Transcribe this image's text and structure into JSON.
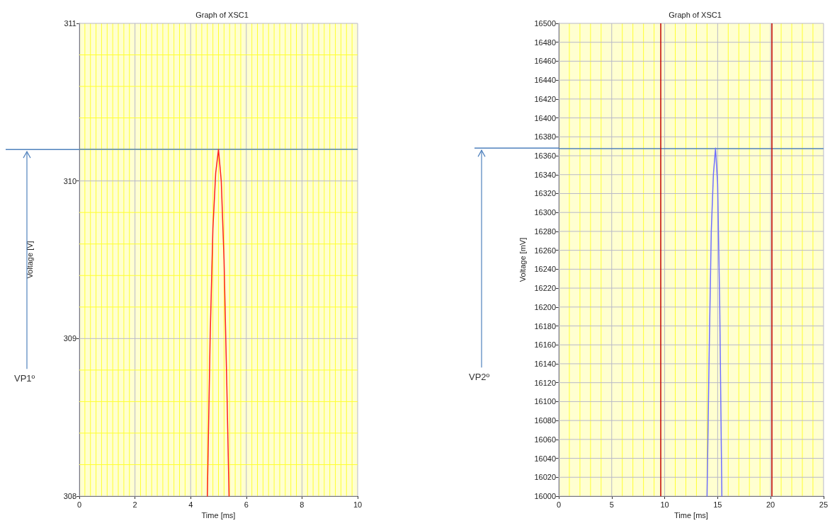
{
  "chart_data": [
    {
      "type": "line",
      "title": "Graph of XSC1",
      "xlabel": "Time [ms]",
      "ylabel": "Voltage [V]",
      "x": [
        4.6,
        4.7,
        4.8,
        4.9,
        5.0,
        5.1,
        5.2,
        5.3,
        5.38
      ],
      "series": [
        {
          "color": "#ff2020",
          "values": [
            308,
            309,
            309.7,
            310.05,
            310.2,
            310,
            309.5,
            308.7,
            308
          ]
        }
      ],
      "xlim": [
        0,
        10
      ],
      "ylim": [
        308,
        311
      ],
      "xticks": [
        0,
        {
          "value": 0.2,
          "label": null
        },
        {
          "value": 0.4,
          "label": null
        },
        {
          "value": 0.6,
          "label": null
        },
        {
          "value": 0.8,
          "label": null
        },
        {
          "value": 1,
          "label": null
        },
        {
          "value": 1.2,
          "label": null
        },
        {
          "value": 1.4,
          "label": null
        },
        {
          "value": 1.6,
          "label": null
        },
        {
          "value": 1.8,
          "label": null
        },
        2,
        {
          "value": 2.2,
          "label": null
        },
        {
          "value": 2.4,
          "label": null
        },
        {
          "value": 2.6,
          "label": null
        },
        {
          "value": 2.8,
          "label": null
        },
        {
          "value": 3,
          "label": null
        },
        {
          "value": 3.2,
          "label": null
        },
        {
          "value": 3.4,
          "label": null
        },
        {
          "value": 3.6,
          "label": null
        },
        {
          "value": 3.8,
          "label": null
        },
        4,
        {
          "value": 4.2,
          "label": null
        },
        {
          "value": 4.4,
          "label": null
        },
        {
          "value": 4.6,
          "label": null
        },
        {
          "value": 4.8,
          "label": null
        },
        {
          "value": 5,
          "label": null
        },
        {
          "value": 5.2,
          "label": null
        },
        {
          "value": 5.4,
          "label": null
        },
        {
          "value": 5.6,
          "label": null
        },
        {
          "value": 5.8,
          "label": null
        },
        6,
        {
          "value": 6.2,
          "label": null
        },
        {
          "value": 6.4,
          "label": null
        },
        {
          "value": 6.6,
          "label": null
        },
        {
          "value": 6.8,
          "label": null
        },
        {
          "value": 7,
          "label": null
        },
        {
          "value": 7.2,
          "label": null
        },
        {
          "value": 7.4,
          "label": null
        },
        {
          "value": 7.6,
          "label": null
        },
        {
          "value": 7.8,
          "label": null
        },
        8,
        {
          "value": 8.2,
          "label": null
        },
        {
          "value": 8.4,
          "label": null
        },
        {
          "value": 8.6,
          "label": null
        },
        {
          "value": 8.8,
          "label": null
        },
        {
          "value": 9,
          "label": null
        },
        {
          "value": 9.2,
          "label": null
        },
        {
          "value": 9.4,
          "label": null
        },
        {
          "value": 9.6,
          "label": null
        },
        {
          "value": 9.8,
          "label": null
        },
        10
      ],
      "yticks": [
        308,
        {
          "value": 308.2,
          "label": null
        },
        {
          "value": 308.4,
          "label": null
        },
        {
          "value": 308.6,
          "label": null
        },
        {
          "value": 308.8,
          "label": null
        },
        309,
        {
          "value": 309.2,
          "label": null
        },
        {
          "value": 309.4,
          "label": null
        },
        {
          "value": 309.6,
          "label": null
        },
        {
          "value": 309.8,
          "label": null
        },
        310,
        {
          "value": 310.2,
          "label": null
        },
        {
          "value": 310.4,
          "label": null
        },
        {
          "value": 310.6,
          "label": null
        },
        {
          "value": 310.8,
          "label": null
        },
        311
      ],
      "grid": true,
      "marker": "none",
      "ref_lines": [
        {
          "axis": "y",
          "value": 310.2,
          "color": "#4f81bd"
        }
      ],
      "annotations": [
        "VP1º"
      ]
    },
    {
      "type": "line",
      "title": "Graph of XSC1",
      "xlabel": "Time [ms]",
      "ylabel": "Voltage [mV]",
      "x": [
        14.0,
        14.2,
        14.4,
        14.6,
        14.8,
        15.0,
        15.2,
        15.4
      ],
      "series": [
        {
          "color": "#6f6fff",
          "values": [
            16000,
            16150,
            16280,
            16340,
            16368,
            16330,
            16200,
            16000
          ]
        }
      ],
      "xlim": [
        0,
        25
      ],
      "ylim": [
        16000,
        16500
      ],
      "xticks": [
        0,
        {
          "value": 1,
          "label": null
        },
        {
          "value": 2,
          "label": null
        },
        {
          "value": 3,
          "label": null
        },
        {
          "value": 4,
          "label": null
        },
        5,
        {
          "value": 6,
          "label": null
        },
        {
          "value": 7,
          "label": null
        },
        {
          "value": 8,
          "label": null
        },
        {
          "value": 9,
          "label": null
        },
        10,
        {
          "value": 11,
          "label": null
        },
        {
          "value": 12,
          "label": null
        },
        {
          "value": 13,
          "label": null
        },
        {
          "value": 14,
          "label": null
        },
        15,
        {
          "value": 16,
          "label": null
        },
        {
          "value": 17,
          "label": null
        },
        {
          "value": 18,
          "label": null
        },
        {
          "value": 19,
          "label": null
        },
        20,
        {
          "value": 21,
          "label": null
        },
        {
          "value": 22,
          "label": null
        },
        {
          "value": 23,
          "label": null
        },
        {
          "value": 24,
          "label": null
        },
        25
      ],
      "yticks": [
        16000,
        16020,
        16040,
        16060,
        16080,
        16100,
        16120,
        16140,
        16160,
        16180,
        16200,
        16220,
        16240,
        16260,
        16280,
        16300,
        16320,
        16340,
        16360,
        16380,
        16400,
        16420,
        16440,
        16460,
        16480,
        16500
      ],
      "grid": true,
      "marker": "none",
      "ref_lines": [
        {
          "axis": "y",
          "value": 16368,
          "color": "#4f81bd"
        },
        {
          "axis": "x",
          "value": 9.6,
          "color": "#c00000"
        },
        {
          "axis": "x",
          "value": 20.1,
          "color": "#c00000"
        }
      ],
      "annotations": [
        "VP2º"
      ]
    }
  ]
}
